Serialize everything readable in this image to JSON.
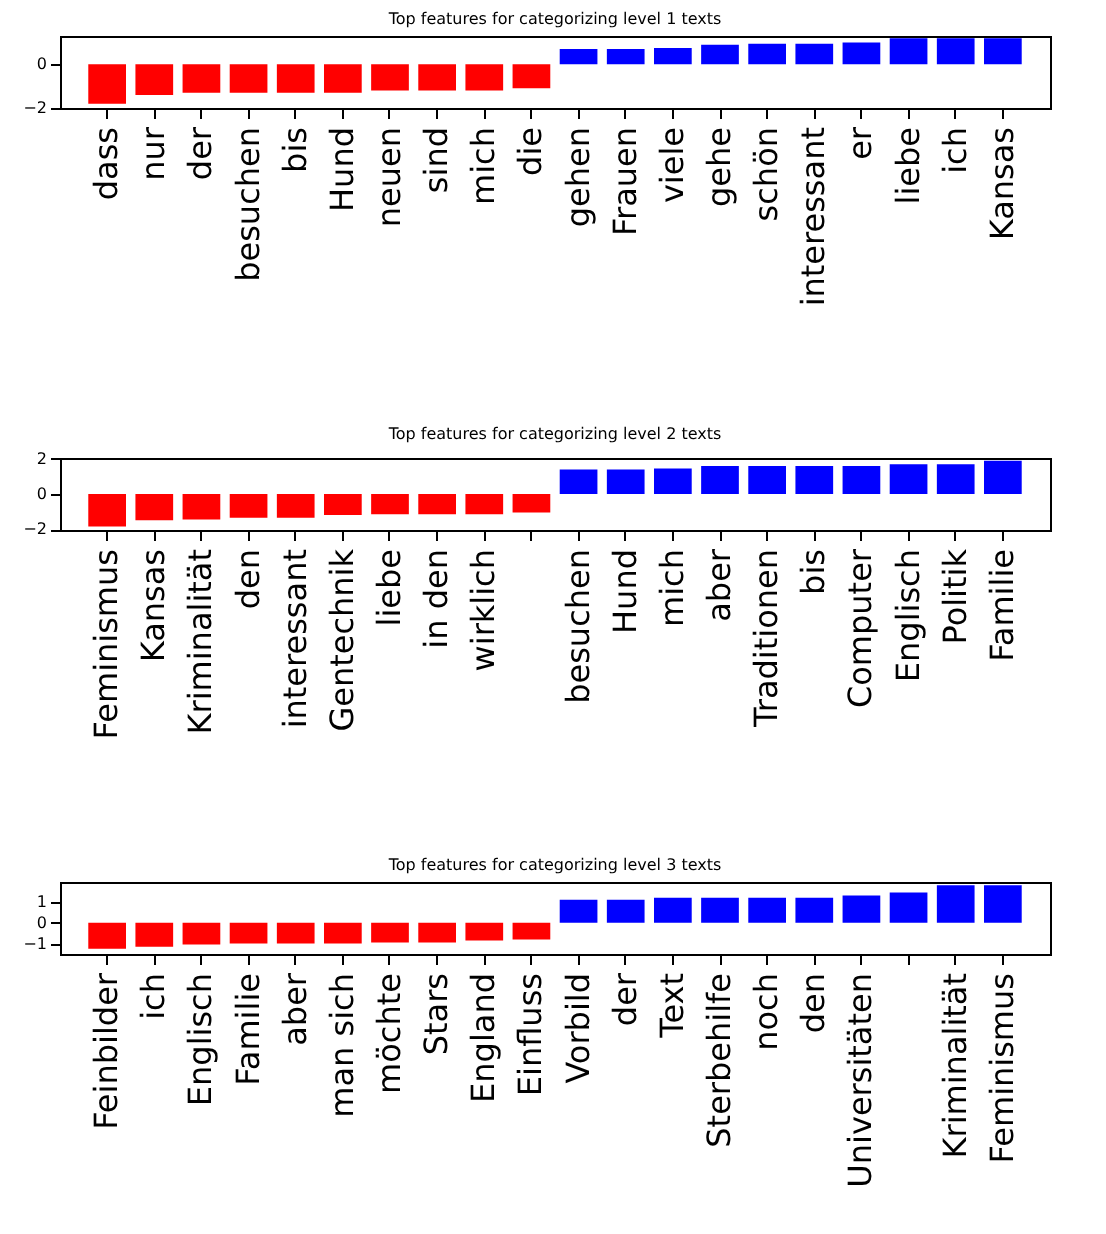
{
  "chart_data": [
    {
      "type": "bar",
      "title": "Top features for categorizing level 1 texts",
      "categories": [
        "dass",
        "nur",
        "der",
        "besuchen",
        "bis",
        "Hund",
        "neuen",
        "sind",
        "mich",
        "die",
        "gehen",
        "Frauen",
        "viele",
        "gehe",
        "schön",
        "interessant",
        "er",
        "liebe",
        "ich",
        "Kansas"
      ],
      "values": [
        -1.8,
        -1.4,
        -1.3,
        -1.3,
        -1.3,
        -1.3,
        -1.2,
        -1.2,
        -1.2,
        -1.1,
        0.7,
        0.7,
        0.75,
        0.9,
        0.95,
        0.95,
        1.0,
        1.2,
        1.2,
        1.2
      ],
      "colors": [
        "#ff0000",
        "#ff0000",
        "#ff0000",
        "#ff0000",
        "#ff0000",
        "#ff0000",
        "#ff0000",
        "#ff0000",
        "#ff0000",
        "#ff0000",
        "#0000ff",
        "#0000ff",
        "#0000ff",
        "#0000ff",
        "#0000ff",
        "#0000ff",
        "#0000ff",
        "#0000ff",
        "#0000ff",
        "#0000ff"
      ],
      "ylim": [
        -2,
        1.3
      ],
      "yticks": [
        -2,
        0
      ],
      "grid": false
    },
    {
      "type": "bar",
      "title": "Top features for categorizing level 2 texts",
      "categories": [
        "Feminismus",
        "Kansas",
        "Kriminalität",
        "den",
        "interessant",
        "Gentechnik",
        "liebe",
        "in den",
        "wirklich",
        null,
        "besuchen",
        "Hund",
        "mich",
        "aber",
        "Traditionen",
        "bis",
        "Computer",
        "Englisch",
        "Politik",
        "Familie"
      ],
      "values": [
        -1.85,
        -1.5,
        -1.45,
        -1.35,
        -1.35,
        -1.2,
        -1.15,
        -1.15,
        -1.15,
        -1.05,
        1.4,
        1.4,
        1.45,
        1.6,
        1.6,
        1.6,
        1.6,
        1.7,
        1.7,
        1.9
      ],
      "colors": [
        "#ff0000",
        "#ff0000",
        "#ff0000",
        "#ff0000",
        "#ff0000",
        "#ff0000",
        "#ff0000",
        "#ff0000",
        "#ff0000",
        "#ff0000",
        "#0000ff",
        "#0000ff",
        "#0000ff",
        "#0000ff",
        "#0000ff",
        "#0000ff",
        "#0000ff",
        "#0000ff",
        "#0000ff",
        "#0000ff"
      ],
      "ylim": [
        -2.05,
        2.05
      ],
      "yticks": [
        -2,
        0,
        2
      ],
      "grid": false
    },
    {
      "type": "bar",
      "title": "Top features for categorizing level 3 texts",
      "categories": [
        "Feinbilder",
        "ich",
        "Englisch",
        "Familie",
        "aber",
        "man sich",
        "möchte",
        "Stars",
        "England",
        "Einfluss",
        "Vorbild",
        "der",
        "Text",
        "Sterbehilfe",
        "noch",
        "den",
        "Universitäten",
        null,
        "Kriminalität",
        "Feminismus"
      ],
      "values": [
        -1.25,
        -1.15,
        -1.05,
        -1.0,
        -1.0,
        -1.0,
        -0.95,
        -0.95,
        -0.85,
        -0.8,
        1.1,
        1.1,
        1.2,
        1.2,
        1.2,
        1.2,
        1.3,
        1.45,
        1.8,
        1.8
      ],
      "colors": [
        "#ff0000",
        "#ff0000",
        "#ff0000",
        "#ff0000",
        "#ff0000",
        "#ff0000",
        "#ff0000",
        "#ff0000",
        "#ff0000",
        "#ff0000",
        "#0000ff",
        "#0000ff",
        "#0000ff",
        "#0000ff",
        "#0000ff",
        "#0000ff",
        "#0000ff",
        "#0000ff",
        "#0000ff",
        "#0000ff"
      ],
      "ylim": [
        -1.5,
        1.95
      ],
      "yticks": [
        -1,
        0,
        1
      ],
      "grid": false
    }
  ]
}
